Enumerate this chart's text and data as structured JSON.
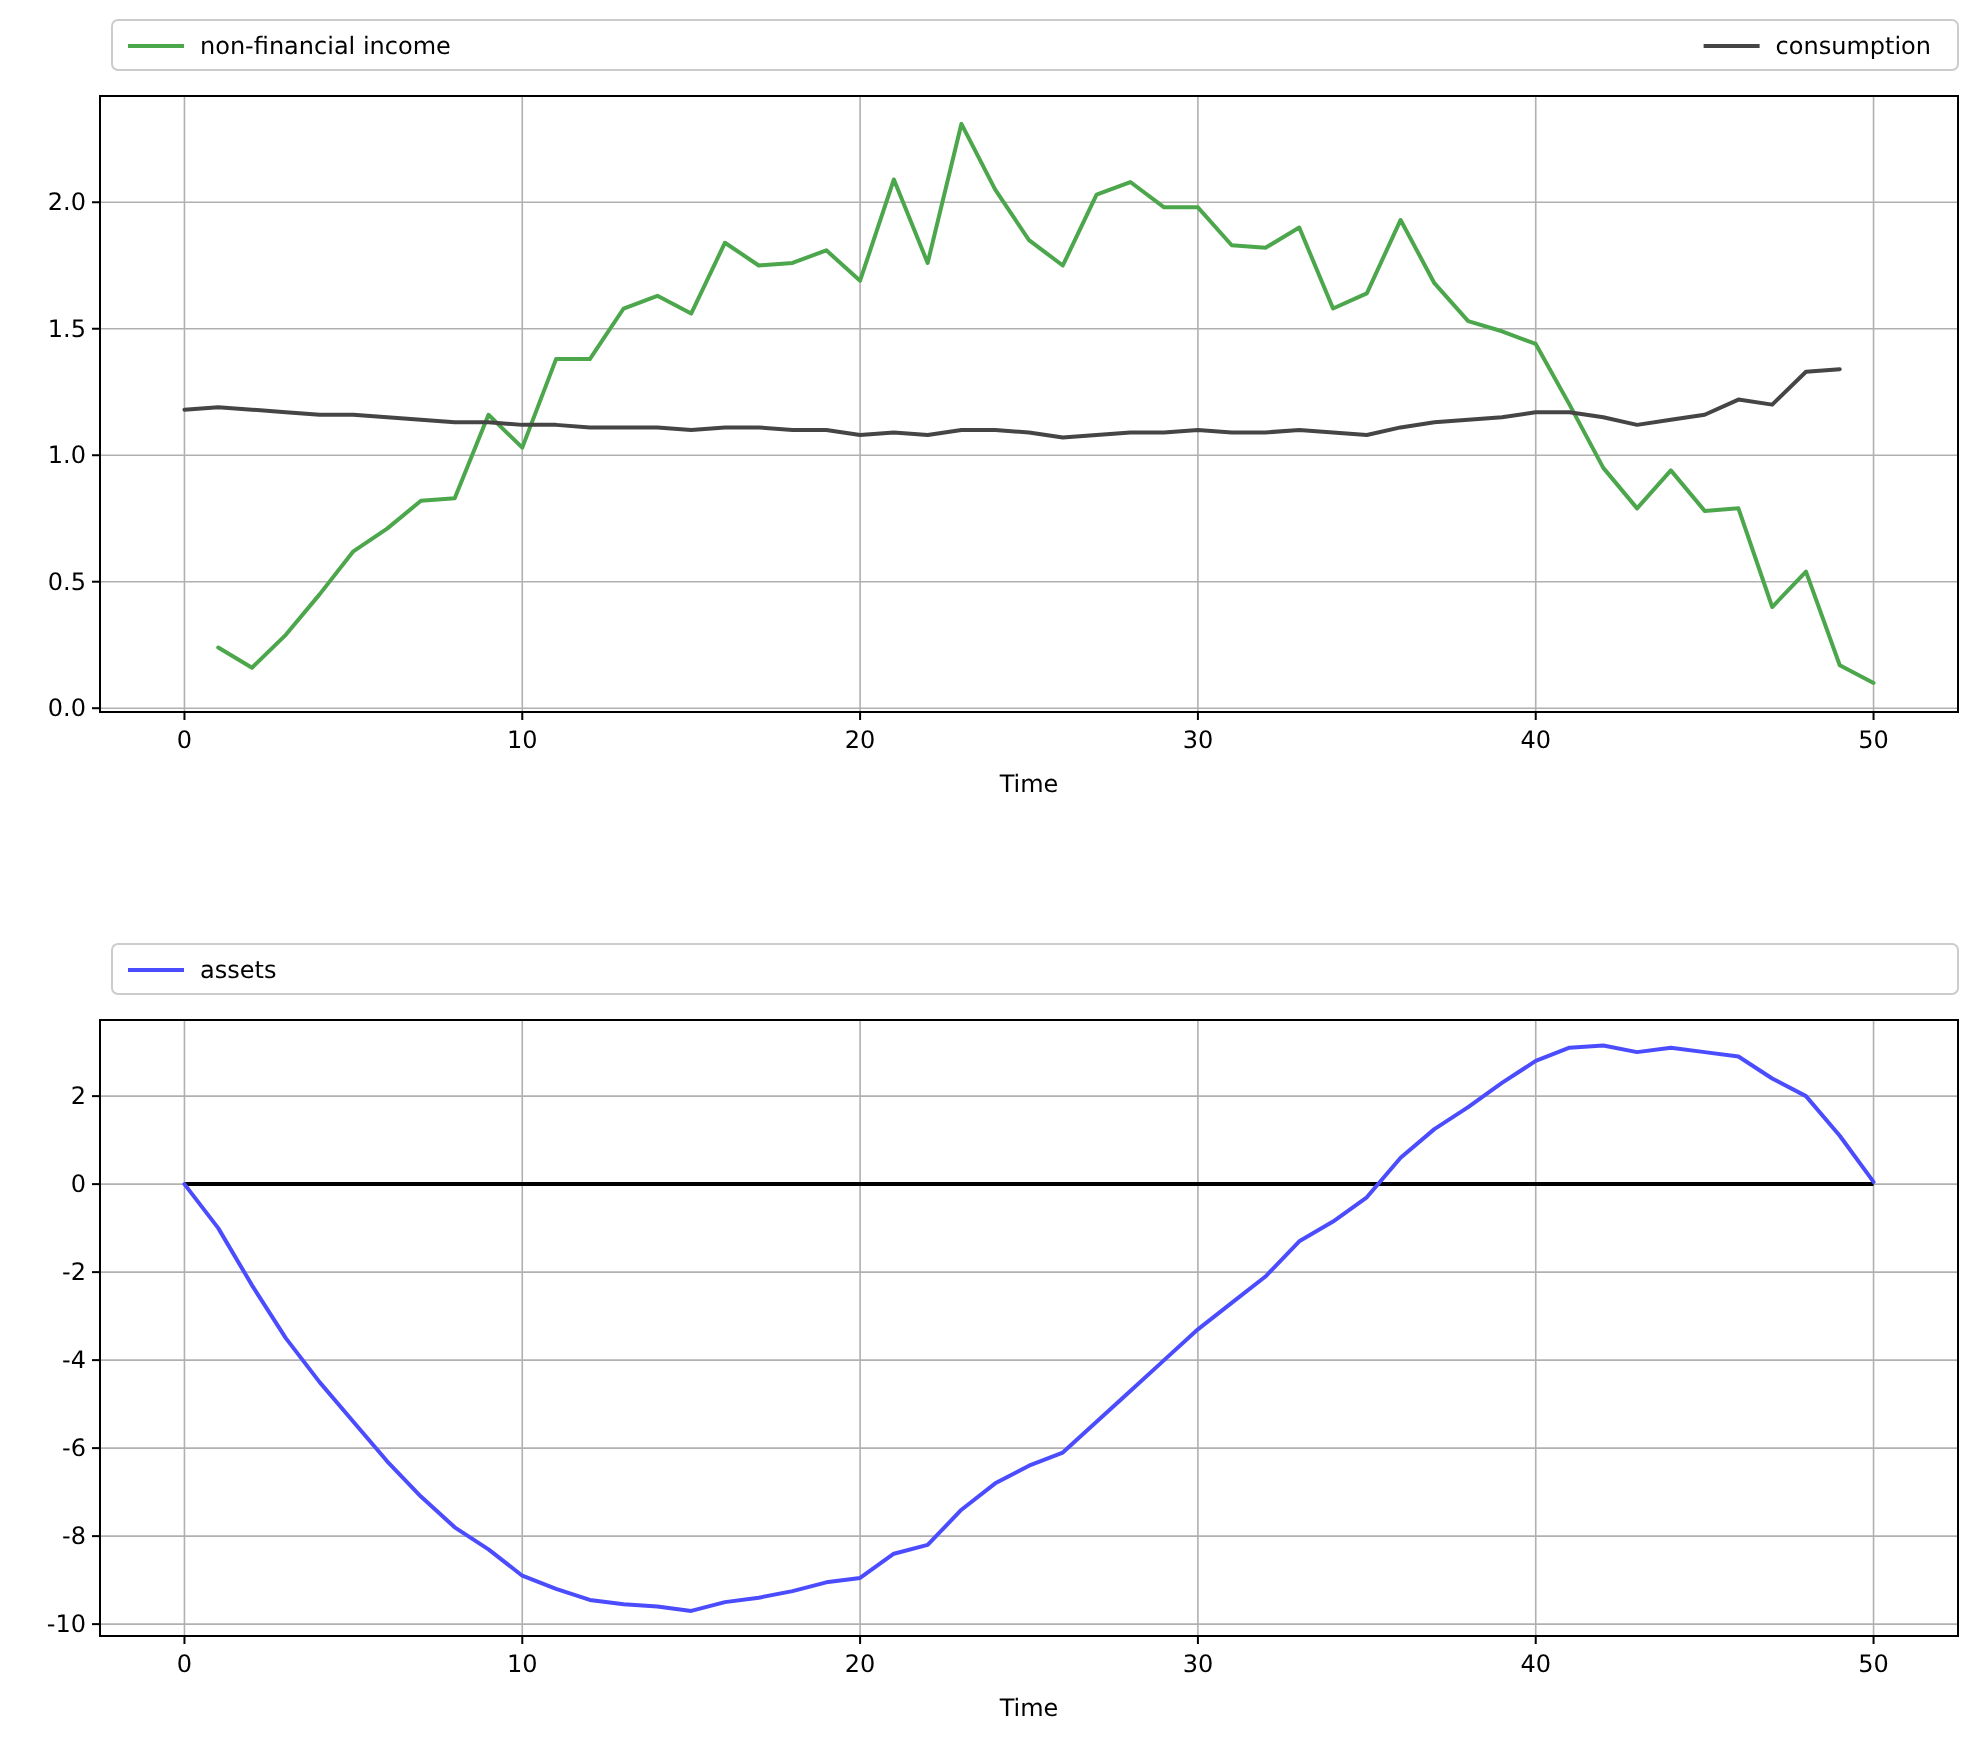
{
  "chart_data": [
    {
      "type": "line",
      "xlabel": "Time",
      "xlim": [
        -2.5,
        52.5
      ],
      "xticks": [
        0,
        10,
        20,
        30,
        40,
        50
      ],
      "ylim": [
        -0.015,
        2.42
      ],
      "yticks": [
        {
          "value": 0,
          "label": "0.0"
        },
        {
          "value": 0.5,
          "label": "0.5"
        },
        {
          "value": 1,
          "label": "1.0"
        },
        {
          "value": 1.5,
          "label": "1.5"
        },
        {
          "value": 2,
          "label": "2.0"
        }
      ],
      "grid": true,
      "legend": "top",
      "series": [
        {
          "name": "non-financial income",
          "color": "#4ca64c",
          "x": [
            1,
            2,
            3,
            4,
            5,
            6,
            7,
            8,
            9,
            10,
            11,
            12,
            13,
            14,
            15,
            16,
            17,
            18,
            19,
            20,
            21,
            22,
            23,
            24,
            25,
            26,
            27,
            28,
            29,
            30,
            31,
            32,
            33,
            34,
            35,
            36,
            37,
            38,
            39,
            40,
            41,
            42,
            43,
            44,
            45,
            46,
            47,
            48,
            49,
            50
          ],
          "values": [
            0.24,
            0.16,
            0.29,
            0.45,
            0.62,
            0.71,
            0.82,
            0.83,
            1.16,
            1.03,
            1.38,
            1.38,
            1.58,
            1.63,
            1.56,
            1.84,
            1.75,
            1.76,
            1.81,
            1.69,
            2.09,
            1.76,
            2.31,
            2.05,
            1.85,
            1.75,
            2.03,
            2.08,
            1.98,
            1.98,
            1.83,
            1.82,
            1.9,
            1.58,
            1.64,
            1.93,
            1.68,
            1.53,
            1.49,
            1.44,
            1.2,
            0.95,
            0.79,
            0.94,
            0.78,
            0.79,
            0.4,
            0.54,
            0.17,
            0.1
          ]
        },
        {
          "name": "consumption",
          "color": "#454545",
          "x": [
            0,
            1,
            2,
            3,
            4,
            5,
            6,
            7,
            8,
            9,
            10,
            11,
            12,
            13,
            14,
            15,
            16,
            17,
            18,
            19,
            20,
            21,
            22,
            23,
            24,
            25,
            26,
            27,
            28,
            29,
            30,
            31,
            32,
            33,
            34,
            35,
            36,
            37,
            38,
            39,
            40,
            41,
            42,
            43,
            44,
            45,
            46,
            47,
            48,
            49
          ],
          "values": [
            1.18,
            1.19,
            1.18,
            1.17,
            1.16,
            1.16,
            1.15,
            1.14,
            1.13,
            1.13,
            1.12,
            1.12,
            1.11,
            1.11,
            1.11,
            1.1,
            1.11,
            1.11,
            1.1,
            1.1,
            1.08,
            1.09,
            1.08,
            1.1,
            1.1,
            1.09,
            1.07,
            1.08,
            1.09,
            1.09,
            1.1,
            1.09,
            1.09,
            1.1,
            1.09,
            1.08,
            1.11,
            1.13,
            1.14,
            1.15,
            1.17,
            1.17,
            1.15,
            1.12,
            1.14,
            1.16,
            1.22,
            1.2,
            1.33,
            1.34
          ]
        }
      ]
    },
    {
      "type": "line",
      "xlabel": "Time",
      "xlim": [
        -2.5,
        52.5
      ],
      "xticks": [
        0,
        10,
        20,
        30,
        40,
        50
      ],
      "ylim": [
        -10.27,
        3.73
      ],
      "yticks": [
        -10,
        -8,
        -6,
        -4,
        -2,
        0,
        2
      ],
      "grid": true,
      "legend": "top",
      "ref_lines": [
        {
          "axis": "y",
          "value": 0,
          "color": "#000000"
        }
      ],
      "series": [
        {
          "name": "assets",
          "color": "#4c4cff",
          "x": [
            0,
            1,
            2,
            3,
            4,
            5,
            6,
            7,
            8,
            9,
            10,
            11,
            12,
            13,
            14,
            15,
            16,
            17,
            18,
            19,
            20,
            21,
            22,
            23,
            24,
            25,
            26,
            27,
            28,
            29,
            30,
            31,
            32,
            33,
            34,
            35,
            36,
            37,
            38,
            39,
            40,
            41,
            42,
            43,
            44,
            45,
            46,
            47,
            48,
            49,
            50
          ],
          "values": [
            0,
            -1.0,
            -2.3,
            -3.5,
            -4.5,
            -5.4,
            -6.3,
            -7.1,
            -7.8,
            -8.3,
            -8.9,
            -9.2,
            -9.45,
            -9.55,
            -9.6,
            -9.7,
            -9.5,
            -9.4,
            -9.25,
            -9.05,
            -8.95,
            -8.4,
            -8.2,
            -7.4,
            -6.8,
            -6.4,
            -6.1,
            -5.4,
            -4.7,
            -4.0,
            -3.3,
            -2.7,
            -2.1,
            -1.3,
            -0.85,
            -0.3,
            0.6,
            1.25,
            1.75,
            2.3,
            2.8,
            3.1,
            3.15,
            3.0,
            3.1,
            3.0,
            2.9,
            2.4,
            2.0,
            1.1,
            0.05
          ]
        }
      ]
    }
  ]
}
